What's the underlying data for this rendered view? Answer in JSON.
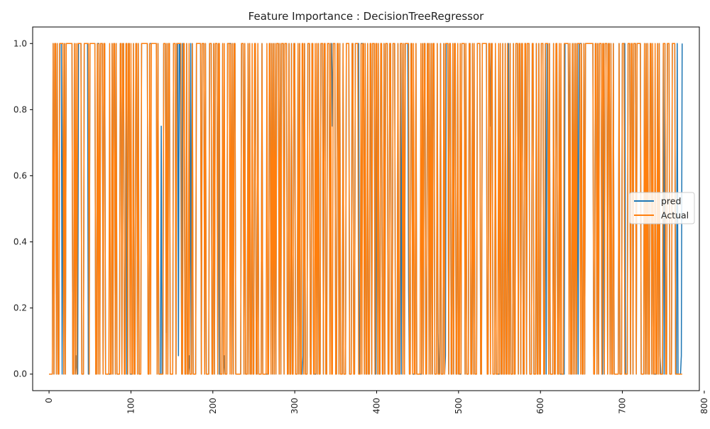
{
  "chart_data": {
    "type": "line",
    "title": "Feature Importance : DecisionTreeRegressor",
    "xlabel": "",
    "ylabel": "",
    "xlim": [
      -20,
      794
    ],
    "ylim": [
      -0.05,
      1.05
    ],
    "xticks": [
      0,
      100,
      200,
      300,
      400,
      500,
      600,
      700,
      800
    ],
    "xtick_labels": [
      "0",
      "100",
      "200",
      "300",
      "400",
      "500",
      "600",
      "700",
      "800"
    ],
    "xtick_rotation": 90,
    "yticks": [
      0.0,
      0.2,
      0.4,
      0.6,
      0.8,
      1.0
    ],
    "ytick_labels": [
      "0.0",
      "0.2",
      "0.4",
      "0.6",
      "0.8",
      "1.0"
    ],
    "grid": false,
    "legend_position": "center-right",
    "n_points": 774,
    "series": [
      {
        "name": "pred",
        "color": "#1f77b4",
        "note_values": "binary 0/1 target predictions with occasional intermediate values (0.0556, 0.125, 0.25, 0.625, 0.75)",
        "intermediate_points": [
          {
            "x": 33,
            "y": 0.0556
          },
          {
            "x": 137,
            "y": 0.75
          },
          {
            "x": 143,
            "y": 0.125
          },
          {
            "x": 158,
            "y": 0.0556
          },
          {
            "x": 161,
            "y": 0.625
          },
          {
            "x": 171,
            "y": 0.0556
          },
          {
            "x": 214,
            "y": 0.0556
          },
          {
            "x": 248,
            "y": 0.75
          },
          {
            "x": 310,
            "y": 0.0556
          },
          {
            "x": 311,
            "y": 0.625
          },
          {
            "x": 319,
            "y": 0.0556
          },
          {
            "x": 346,
            "y": 0.75
          },
          {
            "x": 392,
            "y": 0.75
          },
          {
            "x": 439,
            "y": 0.25
          },
          {
            "x": 475,
            "y": 0.125
          },
          {
            "x": 484,
            "y": 0.0556
          },
          {
            "x": 539,
            "y": 0.75
          },
          {
            "x": 635,
            "y": 0.625
          },
          {
            "x": 665,
            "y": 0.0556
          },
          {
            "x": 746,
            "y": 0.0556
          },
          {
            "x": 772,
            "y": 0.0556
          }
        ]
      },
      {
        "name": "Actual",
        "color": "#ff7f0e",
        "note_values": "binary 0/1 actual targets"
      }
    ]
  }
}
